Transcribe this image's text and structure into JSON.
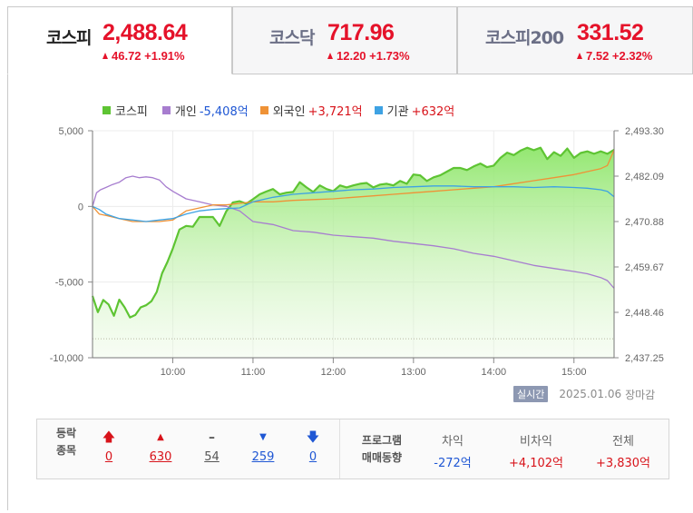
{
  "tabs": [
    {
      "name": "코스피",
      "value": "2,488.64",
      "change": "46.72 +1.91%",
      "active": true
    },
    {
      "name": "코스닥",
      "value": "717.96",
      "change": "12.20 +1.73%",
      "active": false
    },
    {
      "name": "코스피200",
      "value": "331.52",
      "change": "7.52 +2.32%",
      "active": false
    }
  ],
  "legend": [
    {
      "label": "코스피",
      "value": "",
      "color": "#5ec433"
    },
    {
      "label": "개인",
      "value": "-5,408억",
      "color": "#a77dcf"
    },
    {
      "label": "외국인",
      "value": "+3,721억",
      "color": "#ef9236"
    },
    {
      "label": "기관",
      "value": "+632억",
      "color": "#3ea2e3"
    }
  ],
  "status": {
    "badge": "실시간",
    "date": "2025.01.06",
    "state": "장마감"
  },
  "summary": {
    "head1": "등락",
    "head2": "종목",
    "upper_limit": "0",
    "rise": "630",
    "flat": "54",
    "fall": "259",
    "lower_limit": "0",
    "program_head1": "프로그램",
    "program_head2": "매매동향",
    "arbitrage_label": "차익",
    "arbitrage_value": "-272억",
    "non_arbitrage_label": "비차익",
    "non_arbitrage_value": "+4,102억",
    "total_label": "전체",
    "total_value": "+3,830억"
  },
  "chart_data": {
    "type": "line",
    "x_ticks": [
      "10:00",
      "11:00",
      "12:00",
      "13:00",
      "14:00",
      "15:00"
    ],
    "x_range": [
      "09:00",
      "15:30"
    ],
    "left_ticks": [
      "5,000",
      "0",
      "-5,000",
      "-10,000"
    ],
    "left_ylim": [
      -10000,
      5000
    ],
    "right_ticks": [
      "2,493.30",
      "2,482.09",
      "2,470.88",
      "2,459.67",
      "2,448.46",
      "2,437.25"
    ],
    "right_ylim": [
      2437.25,
      2493.3
    ],
    "reference_line": {
      "axis": "right",
      "value": 2441.92,
      "style": "dotted"
    },
    "series": [
      {
        "name": "코스피",
        "axis": "right",
        "color": "#5ec433",
        "area": true,
        "x": [
          "09:00",
          "09:04",
          "09:08",
          "09:12",
          "09:16",
          "09:20",
          "09:24",
          "09:28",
          "09:32",
          "09:36",
          "09:40",
          "09:44",
          "09:48",
          "09:52",
          "09:56",
          "10:00",
          "10:05",
          "10:10",
          "10:15",
          "10:20",
          "10:25",
          "10:30",
          "10:35",
          "10:40",
          "10:45",
          "10:50",
          "10:55",
          "11:00",
          "11:05",
          "11:10",
          "11:15",
          "11:20",
          "11:25",
          "11:30",
          "11:35",
          "11:40",
          "11:45",
          "11:50",
          "11:55",
          "12:00",
          "12:05",
          "12:10",
          "12:15",
          "12:20",
          "12:25",
          "12:30",
          "12:35",
          "12:40",
          "12:45",
          "12:50",
          "12:55",
          "13:00",
          "13:05",
          "13:10",
          "13:15",
          "13:20",
          "13:25",
          "13:30",
          "13:35",
          "13:40",
          "13:45",
          "13:50",
          "13:55",
          "14:00",
          "14:05",
          "14:10",
          "14:15",
          "14:20",
          "14:25",
          "14:30",
          "14:35",
          "14:40",
          "14:45",
          "14:50",
          "14:55",
          "15:00",
          "15:05",
          "15:10",
          "15:15",
          "15:20",
          "15:25",
          "15:30"
        ],
        "y": [
          2452.5,
          2448.5,
          2451.5,
          2450.4,
          2447.6,
          2451.6,
          2449.7,
          2447.2,
          2447.8,
          2449.7,
          2450.2,
          2451.2,
          2453.5,
          2458.1,
          2460.9,
          2464.2,
          2468.9,
          2469.8,
          2469.6,
          2472.0,
          2472.0,
          2472.0,
          2469.8,
          2473.4,
          2475.6,
          2475.9,
          2475.3,
          2476.4,
          2477.6,
          2478.3,
          2478.9,
          2477.6,
          2478.0,
          2478.2,
          2480.6,
          2479.3,
          2478.2,
          2479.8,
          2478.9,
          2478.4,
          2479.8,
          2479.3,
          2479.8,
          2480.2,
          2480.4,
          2479.3,
          2480.0,
          2480.2,
          2479.8,
          2480.9,
          2480.2,
          2482.5,
          2482.3,
          2480.9,
          2481.8,
          2482.3,
          2483.2,
          2484.1,
          2484.1,
          2483.6,
          2484.5,
          2485.2,
          2484.3,
          2484.7,
          2486.6,
          2487.9,
          2487.3,
          2488.4,
          2489.1,
          2488.5,
          2489.1,
          2486.3,
          2488.0,
          2487.1,
          2488.9,
          2486.6,
          2487.8,
          2488.2,
          2487.6,
          2488.2,
          2487.6,
          2488.6
        ]
      },
      {
        "name": "개인",
        "axis": "left",
        "color": "#a77dcf",
        "x": [
          "09:00",
          "09:03",
          "09:06",
          "09:10",
          "09:15",
          "09:20",
          "09:25",
          "09:30",
          "09:35",
          "09:40",
          "09:45",
          "09:50",
          "09:55",
          "10:00",
          "10:10",
          "10:20",
          "10:30",
          "10:40",
          "10:50",
          "11:00",
          "11:15",
          "11:30",
          "11:45",
          "12:00",
          "12:15",
          "12:30",
          "12:45",
          "13:00",
          "13:15",
          "13:30",
          "13:45",
          "14:00",
          "14:15",
          "14:30",
          "14:45",
          "15:00",
          "15:10",
          "15:20",
          "15:25",
          "15:30"
        ],
        "y": [
          0,
          900,
          1100,
          1250,
          1450,
          1600,
          1900,
          2000,
          1900,
          1950,
          1900,
          1750,
          1300,
          1000,
          500,
          300,
          100,
          0,
          -300,
          -1000,
          -1200,
          -1600,
          -1700,
          -1900,
          -2000,
          -2100,
          -2300,
          -2450,
          -2600,
          -2800,
          -3100,
          -3300,
          -3600,
          -3900,
          -4100,
          -4300,
          -4450,
          -4700,
          -4900,
          -5408
        ]
      },
      {
        "name": "외국인",
        "axis": "left",
        "color": "#ef9236",
        "x": [
          "09:00",
          "09:05",
          "09:10",
          "09:20",
          "09:30",
          "09:40",
          "09:50",
          "10:00",
          "10:10",
          "10:20",
          "10:30",
          "10:40",
          "10:50",
          "11:00",
          "11:15",
          "11:30",
          "11:45",
          "12:00",
          "12:15",
          "12:30",
          "12:45",
          "13:00",
          "13:15",
          "13:30",
          "13:45",
          "14:00",
          "14:15",
          "14:30",
          "14:45",
          "15:00",
          "15:10",
          "15:20",
          "15:25",
          "15:30"
        ],
        "y": [
          0,
          -500,
          -600,
          -800,
          -1000,
          -1000,
          -1000,
          -900,
          -300,
          -100,
          100,
          100,
          200,
          300,
          300,
          400,
          450,
          500,
          600,
          700,
          800,
          900,
          1000,
          1100,
          1200,
          1300,
          1500,
          1700,
          1900,
          2100,
          2300,
          2500,
          2700,
          3721
        ]
      },
      {
        "name": "기관",
        "axis": "left",
        "color": "#3ea2e3",
        "x": [
          "09:00",
          "09:05",
          "09:10",
          "09:20",
          "09:30",
          "09:40",
          "09:50",
          "10:00",
          "10:10",
          "10:20",
          "10:30",
          "10:40",
          "10:50",
          "11:00",
          "11:15",
          "11:30",
          "11:45",
          "12:00",
          "12:15",
          "12:30",
          "12:45",
          "13:00",
          "13:15",
          "13:30",
          "13:45",
          "14:00",
          "14:15",
          "14:30",
          "14:45",
          "15:00",
          "15:10",
          "15:20",
          "15:25",
          "15:30"
        ],
        "y": [
          0,
          -200,
          -500,
          -800,
          -900,
          -1000,
          -900,
          -800,
          -500,
          -300,
          -200,
          -150,
          -100,
          300,
          600,
          800,
          900,
          1000,
          1100,
          1150,
          1250,
          1300,
          1350,
          1350,
          1300,
          1300,
          1300,
          1250,
          1300,
          1250,
          1200,
          1100,
          1000,
          632
        ]
      }
    ]
  }
}
